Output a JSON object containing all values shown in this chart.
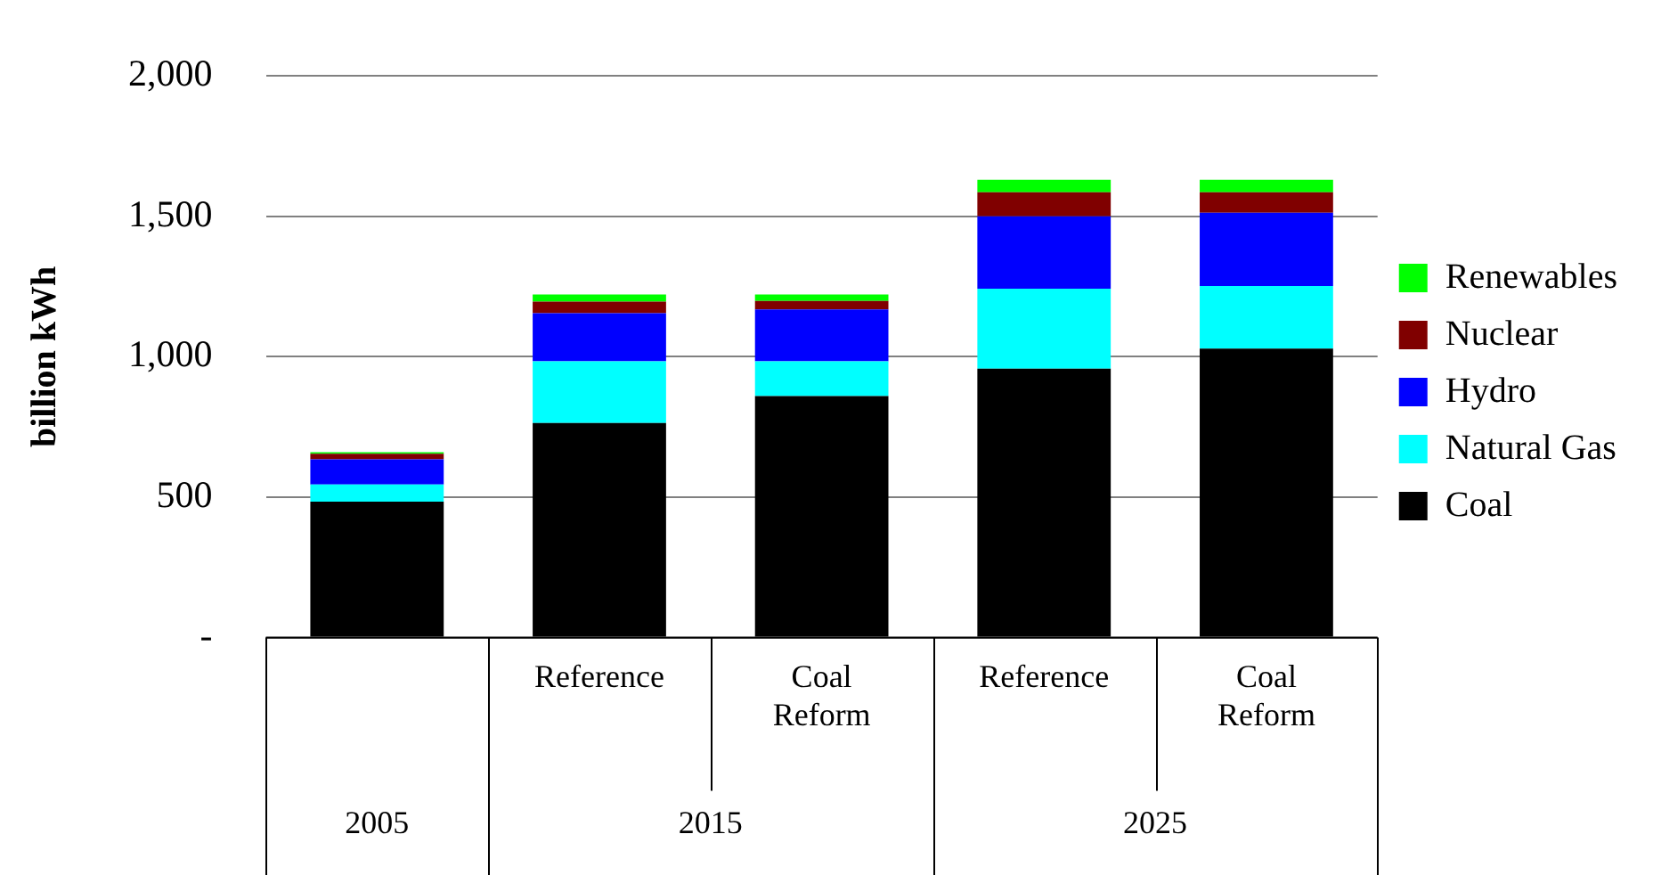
{
  "chart_data": {
    "type": "bar",
    "stacked": true,
    "ylabel": "billion kWh",
    "categories": [
      null,
      "Reference",
      "Coal Reform",
      "Reference",
      "Coal Reform"
    ],
    "annotations": [
      "2005",
      "2015",
      "2025"
    ],
    "series": [
      {
        "name": "Coal",
        "color": "#000000",
        "values": [
          484,
          764,
          860,
          958,
          1029
        ]
      },
      {
        "name": "Natural Gas",
        "color": "#00ffff",
        "values": [
          61,
          220,
          124,
          284,
          223
        ]
      },
      {
        "name": "Hydro",
        "color": "#0000ff",
        "values": [
          90,
          171,
          185,
          258,
          261
        ]
      },
      {
        "name": "Nuclear",
        "color": "#800000",
        "values": [
          20,
          41,
          30,
          86,
          73
        ]
      },
      {
        "name": "Renewables",
        "color": "#00ff00",
        "values": [
          5,
          26,
          23,
          44,
          44
        ]
      }
    ],
    "ylim": [
      0,
      2000
    ],
    "yticks": [
      {
        "value": 0,
        "label": "-"
      },
      {
        "value": 500,
        "label": "500"
      },
      {
        "value": 1000,
        "label": "1,000"
      },
      {
        "value": 1500,
        "label": "1,500"
      },
      {
        "value": 2000,
        "label": "2,000"
      }
    ],
    "grid": "y",
    "legend": "right"
  }
}
